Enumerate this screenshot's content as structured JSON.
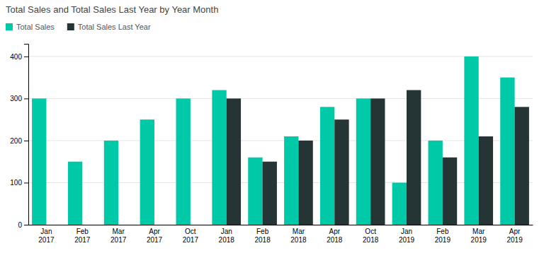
{
  "chart_data": {
    "type": "bar",
    "title": "Total Sales and Total Sales Last Year by Year Month",
    "categories": [
      "Jan\n2017",
      "Feb\n2017",
      "Mar\n2017",
      "Apr\n2017",
      "Oct\n2017",
      "Jan\n2018",
      "Feb\n2018",
      "Mar\n2018",
      "Apr\n2018",
      "Oct\n2018",
      "Jan\n2019",
      "Feb\n2019",
      "Mar\n2019",
      "Apr\n2019"
    ],
    "series": [
      {
        "name": "Total Sales",
        "color": "#00C9A7",
        "values": [
          300,
          150,
          200,
          250,
          300,
          320,
          160,
          210,
          280,
          300,
          100,
          200,
          400,
          350
        ]
      },
      {
        "name": "Total Sales Last Year",
        "color": "#253535",
        "values": [
          null,
          null,
          null,
          null,
          null,
          300,
          150,
          200,
          250,
          300,
          320,
          160,
          210,
          280
        ]
      }
    ],
    "ylim": [
      0,
      430
    ],
    "yticks": [
      0,
      100,
      200,
      300,
      400
    ],
    "grid": true,
    "legend": "top-left"
  }
}
